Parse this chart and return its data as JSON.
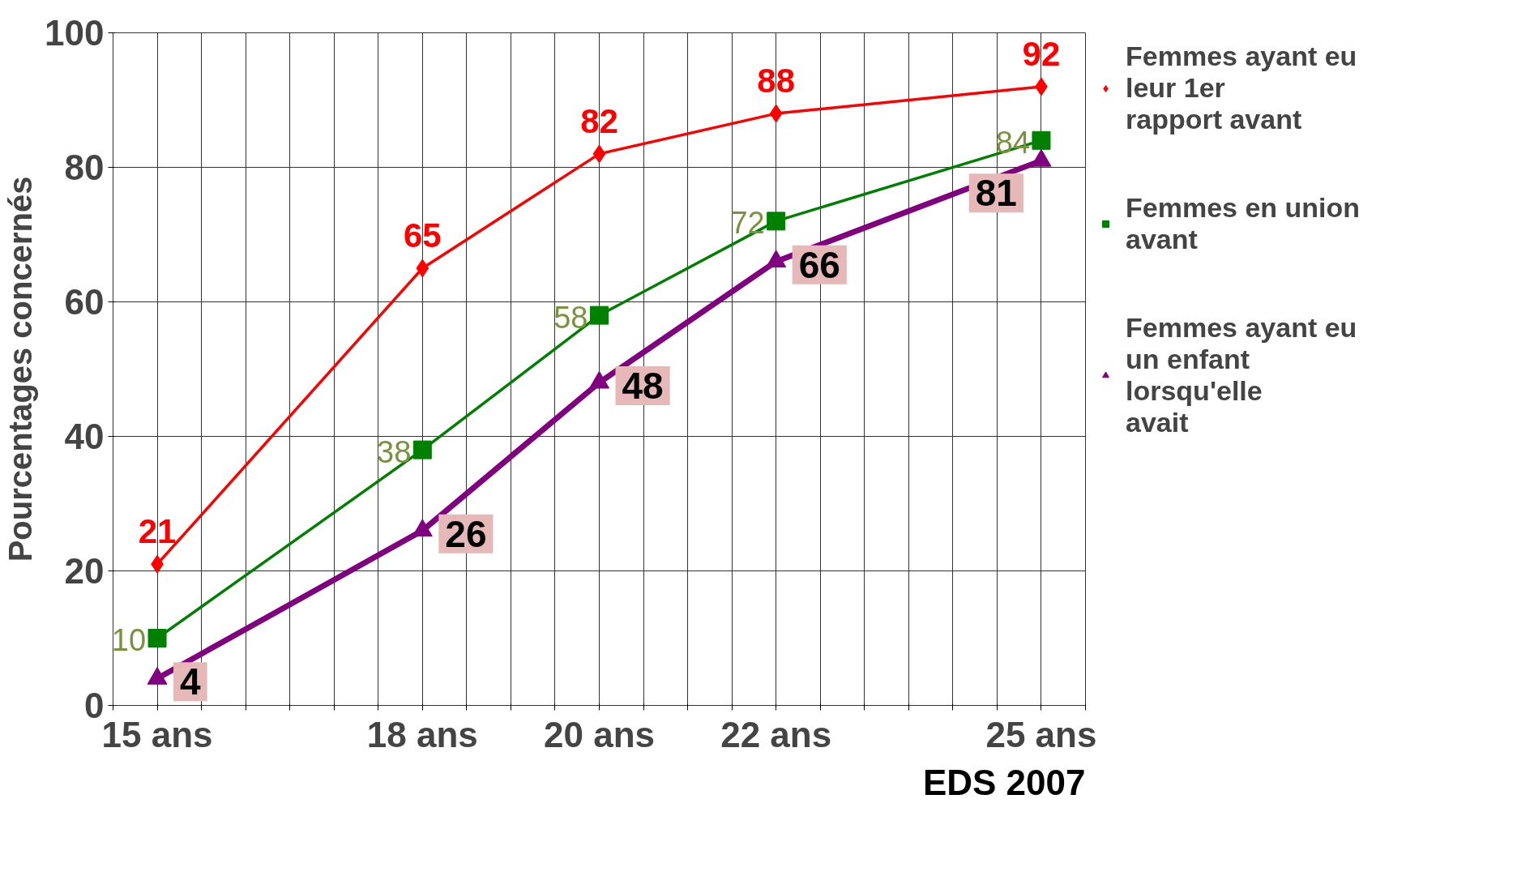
{
  "chart_data": {
    "type": "line",
    "ylabel": "Pourcentages concernés",
    "x": [
      15,
      18,
      20,
      22,
      25
    ],
    "xlim": [
      14.5,
      25.5
    ],
    "ylim": [
      0,
      100
    ],
    "yticks": [
      0,
      20,
      40,
      60,
      80,
      100
    ],
    "xticks": [
      {
        "value": 14.5,
        "label": null
      },
      {
        "value": 15,
        "label": "15 ans"
      },
      {
        "value": 15.5,
        "label": null
      },
      {
        "value": 16,
        "label": null
      },
      {
        "value": 16.5,
        "label": null
      },
      {
        "value": 17,
        "label": null
      },
      {
        "value": 17.5,
        "label": null
      },
      {
        "value": 18,
        "label": "18 ans"
      },
      {
        "value": 18.5,
        "label": null
      },
      {
        "value": 19,
        "label": null
      },
      {
        "value": 19.5,
        "label": null
      },
      {
        "value": 20,
        "label": "20 ans"
      },
      {
        "value": 20.5,
        "label": null
      },
      {
        "value": 21,
        "label": null
      },
      {
        "value": 21.5,
        "label": null
      },
      {
        "value": 22,
        "label": "22 ans"
      },
      {
        "value": 22.5,
        "label": null
      },
      {
        "value": 23,
        "label": null
      },
      {
        "value": 23.5,
        "label": null
      },
      {
        "value": 24,
        "label": null
      },
      {
        "value": 24.5,
        "label": null
      },
      {
        "value": 25,
        "label": "25 ans"
      },
      {
        "value": 25.5,
        "label": null
      }
    ],
    "series": [
      {
        "name": "Femmes ayant eu leur 1er rapport avant",
        "color": "#ff0000",
        "marker": "diamond",
        "values": [
          21,
          65,
          82,
          88,
          92
        ]
      },
      {
        "name": "Femmes en union avant",
        "color": "#008000",
        "marker": "square",
        "values": [
          10,
          38,
          58,
          72,
          84
        ]
      },
      {
        "name": "Femmes ayant eu un enfant lorsqu'elle avait",
        "color": "#800080",
        "marker": "triangle",
        "values": [
          4,
          26,
          48,
          66,
          81
        ]
      }
    ],
    "data_labels": true,
    "grid": true,
    "legend": "right",
    "annotations": [
      "EDS 2007"
    ]
  }
}
